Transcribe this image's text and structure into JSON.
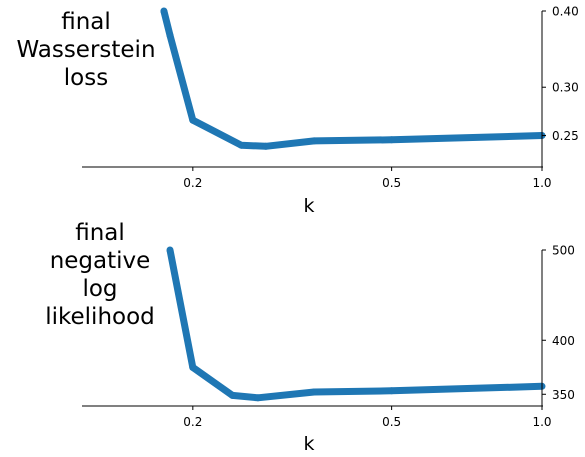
{
  "chart_data": [
    {
      "type": "line",
      "ylabel_lines": [
        "final",
        "Wasserstein",
        "loss"
      ],
      "xlabel": "k",
      "x_ticks": [
        0.2,
        0.5,
        1.0
      ],
      "x_tick_labels": [
        "0.2",
        "0.5",
        "1.0"
      ],
      "xlim": [
        0.12,
        1.0
      ],
      "x_scale": "log",
      "y_ticks": [
        0.25,
        0.3,
        0.4
      ],
      "y_tick_labels": [
        "0.25",
        "0.30",
        "0.40"
      ],
      "ylim": [
        0.222,
        0.4
      ],
      "y_scale": "log",
      "y_axis_side": "right",
      "color": "#1f77b4",
      "series": [
        {
          "x": [
            0.175,
            0.18,
            0.2,
            0.25,
            0.28,
            0.35,
            0.5,
            1.0
          ],
          "y": [
            0.4,
            0.365,
            0.265,
            0.241,
            0.24,
            0.245,
            0.246,
            0.25
          ]
        }
      ]
    },
    {
      "type": "line",
      "ylabel_lines": [
        "final",
        "negative",
        "log",
        "likelihood"
      ],
      "xlabel": "k",
      "x_ticks": [
        0.2,
        0.5,
        1.0
      ],
      "x_tick_labels": [
        "0.2",
        "0.5",
        "1.0"
      ],
      "xlim": [
        0.12,
        1.0
      ],
      "x_scale": "log",
      "y_ticks": [
        350,
        400,
        500
      ],
      "y_tick_labels": [
        "350",
        "400",
        "500"
      ],
      "ylim": [
        340,
        500
      ],
      "y_scale": "log",
      "y_axis_side": "right",
      "color": "#1f77b4",
      "series": [
        {
          "x": [
            0.18,
            0.2,
            0.24,
            0.27,
            0.35,
            0.5,
            1.0
          ],
          "y": [
            500,
            374,
            349,
            347,
            352,
            353,
            357
          ]
        }
      ]
    }
  ]
}
